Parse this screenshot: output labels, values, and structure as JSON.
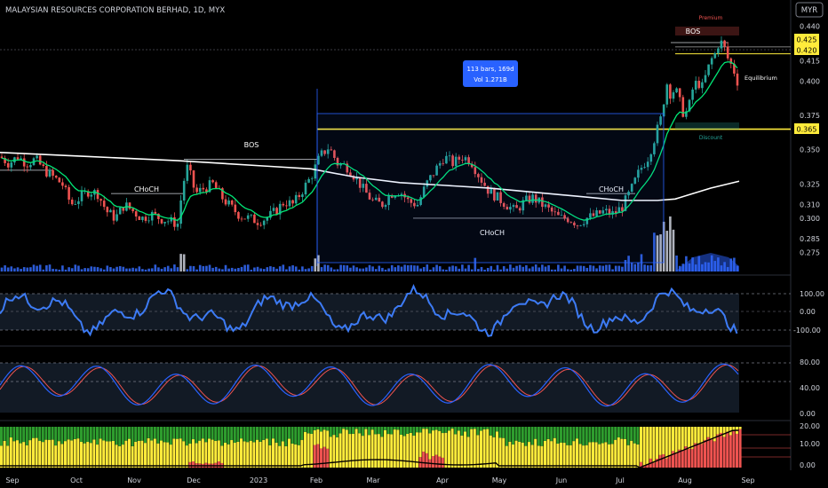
{
  "header": {
    "symbol_line": "MALAYSIAN RESOURCES CORPORATION BERHAD, 1D, MYX",
    "currency_button": "MYR"
  },
  "measure_box": {
    "line1": "113 bars, 169d",
    "line2": "Vol 1.271B"
  },
  "price_scale": {
    "ticks": [
      "0.440",
      "0.415",
      "0.400",
      "0.375",
      "0.350",
      "0.325",
      "0.310",
      "0.300",
      "0.285",
      "0.275"
    ]
  },
  "price_badges": {
    "high1": "0.425",
    "high2": "0.420",
    "level": "0.365"
  },
  "annotations": {
    "bos_labels": [
      "BOS",
      "BOS"
    ],
    "choch_labels": [
      "CHoCH",
      "CHoCH",
      "CHoCH"
    ],
    "premium": "Premium",
    "equilibrium": "Equilibrium",
    "discount": "Discount"
  },
  "osc1_scale": {
    "ticks": [
      "100.00",
      "0.00",
      "-100.00"
    ]
  },
  "osc2_scale": {
    "ticks": [
      "80.00",
      "40.00",
      "0.00"
    ]
  },
  "osc3_scale": {
    "ticks": [
      "20.00",
      "10.00",
      "0.00"
    ]
  },
  "time_axis": {
    "labels": [
      "Sep",
      "Oct",
      "Nov",
      "Dec",
      "2023",
      "Feb",
      "Mar",
      "Apr",
      "May",
      "Jun",
      "Jul",
      "Aug",
      "Sep"
    ]
  },
  "colors": {
    "up": "#26a69a",
    "down": "#ef5350",
    "ma": "#ffffff",
    "ema": "#00e676",
    "level": "#ffeb3b",
    "osc": "#3d7bf5",
    "measure": "#2962ff"
  },
  "chart_data": {
    "type": "candlestick",
    "title": "MALAYSIAN RESOURCES CORPORATION BERHAD, 1D, MYX",
    "ylim": [
      0.265,
      0.445
    ],
    "x_range": [
      "Sep",
      "Sep"
    ],
    "close_path": [
      [
        0,
        0.345
      ],
      [
        10,
        0.34
      ],
      [
        20,
        0.345
      ],
      [
        30,
        0.34
      ],
      [
        40,
        0.343
      ],
      [
        50,
        0.335
      ],
      [
        60,
        0.33
      ],
      [
        70,
        0.325
      ],
      [
        80,
        0.31
      ],
      [
        90,
        0.315
      ],
      [
        100,
        0.32
      ],
      [
        110,
        0.318
      ],
      [
        120,
        0.305
      ],
      [
        130,
        0.3
      ],
      [
        140,
        0.31
      ],
      [
        150,
        0.305
      ],
      [
        160,
        0.3
      ],
      [
        170,
        0.303
      ],
      [
        180,
        0.3
      ],
      [
        190,
        0.298
      ],
      [
        200,
        0.296
      ],
      [
        205,
        0.32
      ],
      [
        210,
        0.338
      ],
      [
        215,
        0.33
      ],
      [
        220,
        0.318
      ],
      [
        230,
        0.322
      ],
      [
        240,
        0.325
      ],
      [
        250,
        0.315
      ],
      [
        260,
        0.308
      ],
      [
        270,
        0.302
      ],
      [
        280,
        0.3
      ],
      [
        290,
        0.298
      ],
      [
        300,
        0.3
      ],
      [
        310,
        0.305
      ],
      [
        320,
        0.312
      ],
      [
        330,
        0.31
      ],
      [
        340,
        0.32
      ],
      [
        350,
        0.33
      ],
      [
        360,
        0.345
      ],
      [
        370,
        0.352
      ],
      [
        380,
        0.34
      ],
      [
        390,
        0.338
      ],
      [
        400,
        0.33
      ],
      [
        410,
        0.32
      ],
      [
        420,
        0.312
      ],
      [
        430,
        0.31
      ],
      [
        440,
        0.318
      ],
      [
        450,
        0.32
      ],
      [
        460,
        0.312
      ],
      [
        470,
        0.31
      ],
      [
        480,
        0.325
      ],
      [
        490,
        0.335
      ],
      [
        500,
        0.345
      ],
      [
        510,
        0.34
      ],
      [
        520,
        0.345
      ],
      [
        530,
        0.342
      ],
      [
        540,
        0.33
      ],
      [
        550,
        0.32
      ],
      [
        560,
        0.315
      ],
      [
        570,
        0.31
      ],
      [
        580,
        0.305
      ],
      [
        590,
        0.312
      ],
      [
        600,
        0.315
      ],
      [
        610,
        0.31
      ],
      [
        620,
        0.305
      ],
      [
        630,
        0.3
      ],
      [
        640,
        0.3
      ],
      [
        650,
        0.296
      ],
      [
        660,
        0.3
      ],
      [
        670,
        0.302
      ],
      [
        680,
        0.305
      ],
      [
        690,
        0.303
      ],
      [
        700,
        0.308
      ],
      [
        710,
        0.32
      ],
      [
        720,
        0.335
      ],
      [
        730,
        0.345
      ],
      [
        740,
        0.365
      ],
      [
        745,
        0.375
      ],
      [
        750,
        0.4
      ],
      [
        755,
        0.39
      ],
      [
        760,
        0.395
      ],
      [
        765,
        0.385
      ],
      [
        770,
        0.375
      ],
      [
        775,
        0.38
      ],
      [
        780,
        0.395
      ],
      [
        785,
        0.4
      ],
      [
        790,
        0.395
      ],
      [
        795,
        0.405
      ],
      [
        800,
        0.415
      ],
      [
        805,
        0.42
      ],
      [
        810,
        0.43
      ],
      [
        815,
        0.425
      ],
      [
        820,
        0.415
      ],
      [
        825,
        0.41
      ],
      [
        830,
        0.4
      ]
    ],
    "ma_path": [
      [
        0,
        0.348
      ],
      [
        100,
        0.345
      ],
      [
        200,
        0.342
      ],
      [
        300,
        0.338
      ],
      [
        350,
        0.336
      ],
      [
        400,
        0.33
      ],
      [
        450,
        0.326
      ],
      [
        500,
        0.324
      ],
      [
        550,
        0.322
      ],
      [
        600,
        0.319
      ],
      [
        650,
        0.316
      ],
      [
        700,
        0.313
      ],
      [
        740,
        0.313
      ],
      [
        760,
        0.314
      ],
      [
        780,
        0.318
      ],
      [
        800,
        0.322
      ],
      [
        832,
        0.327
      ]
    ],
    "levels": [
      0.365,
      0.42,
      0.425
    ]
  }
}
